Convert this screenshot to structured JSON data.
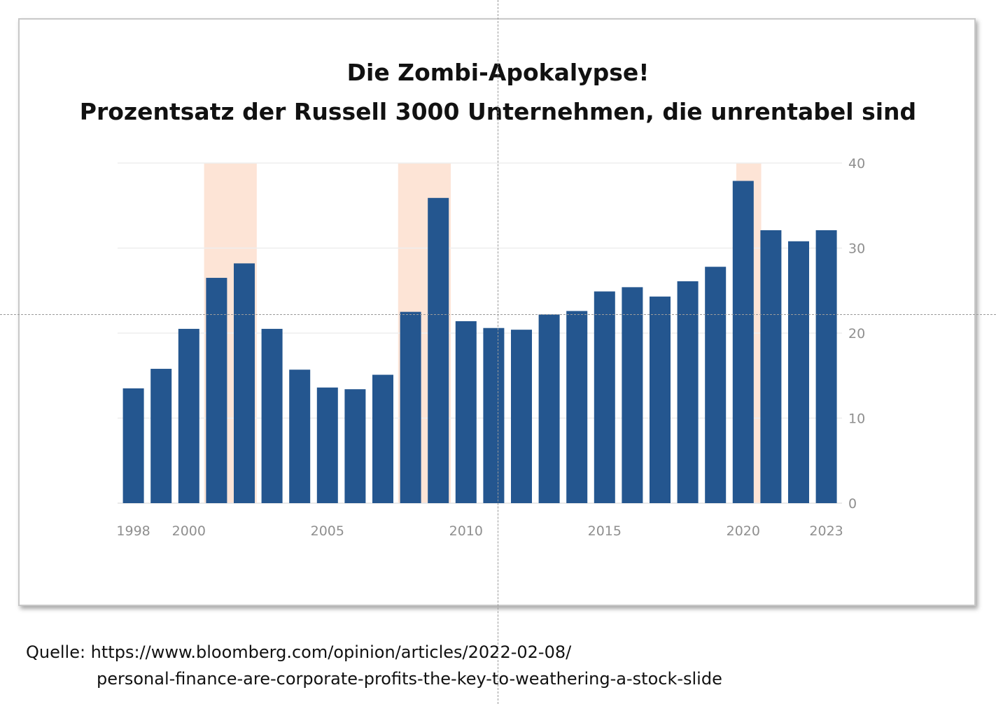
{
  "chart_data": {
    "type": "bar",
    "title": "Die Zombi-Apokalypse!",
    "subtitle": "Prozentsatz der Russell 3000 Unternehmen, die unrentabel sind",
    "xlabel": "",
    "ylabel": "",
    "ylim": [
      0,
      40
    ],
    "y_ticks": [
      0,
      10,
      20,
      30,
      40
    ],
    "y_axis_position": "right",
    "grid": true,
    "x_tick_labels": [
      "1998",
      "2000",
      "2005",
      "2010",
      "2015",
      "2020",
      "2023"
    ],
    "categories": [
      1998,
      1999,
      2000,
      2001,
      2002,
      2003,
      2004,
      2005,
      2006,
      2007,
      2008,
      2009,
      2010,
      2011,
      2012,
      2013,
      2014,
      2015,
      2016,
      2017,
      2018,
      2019,
      2020,
      2021,
      2022,
      2023
    ],
    "values": [
      13.5,
      15.8,
      20.5,
      26.5,
      28.2,
      20.5,
      15.7,
      13.6,
      13.4,
      15.1,
      22.5,
      35.9,
      21.4,
      20.6,
      20.4,
      22.2,
      22.6,
      24.9,
      25.4,
      24.3,
      26.1,
      27.8,
      37.9,
      32.1,
      30.8,
      32.1
    ],
    "recession_shading": [
      {
        "start": 2000.55,
        "end": 2002.45
      },
      {
        "start": 2007.55,
        "end": 2009.45
      },
      {
        "start": 2019.75,
        "end": 2020.65
      }
    ],
    "colors": {
      "bar": "#24568f",
      "recession": "#fde4d6",
      "grid": "#eeeeee",
      "tick_label": "#8f8f8f"
    }
  },
  "source": {
    "line1": "Quelle: https://www.bloomberg.com/opinion/articles/2022-02-08/",
    "line2": "personal-finance-are-corporate-profits-the-key-to-weathering-a-stock-slide"
  }
}
